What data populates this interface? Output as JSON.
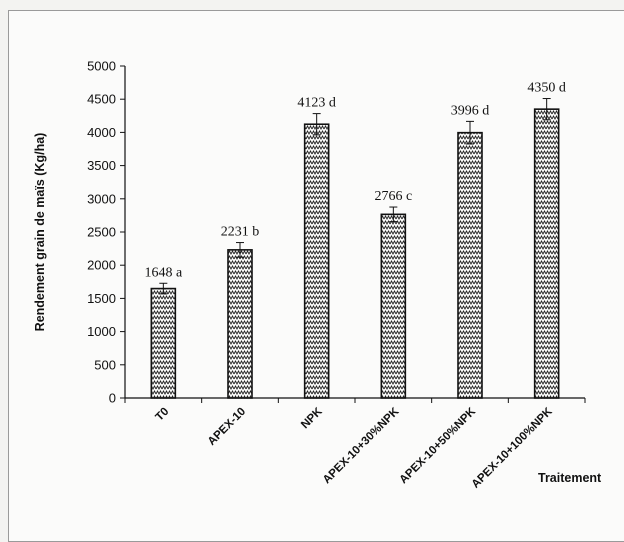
{
  "chart_data": {
    "type": "bar",
    "categories": [
      "T0",
      "APEX-10",
      "NPK",
      "APEX-10+30%NPK",
      "APEX-10+50%NPK",
      "APEX-10+100%NPK"
    ],
    "values": [
      1648,
      2231,
      4123,
      2766,
      3996,
      4350
    ],
    "error": [
      80,
      110,
      160,
      110,
      170,
      160
    ],
    "data_labels": [
      "1648 a",
      "2231 b",
      "4123 d",
      "2766 c",
      "3996 d",
      "4350 d"
    ],
    "xlabel": "Traitement",
    "ylabel": "Rendement grain de maïs (Kg/ha)",
    "ylim": [
      0,
      5000
    ],
    "yticks": [
      0,
      500,
      1000,
      1500,
      2000,
      2500,
      3000,
      3500,
      4000,
      4500,
      5000
    ],
    "grid": false,
    "legend": "none",
    "bar_fill": "hatched-zigzag",
    "colors": {
      "bar_stroke": "#111111",
      "hatch": "#222222",
      "background": "#fbfbfa"
    }
  }
}
